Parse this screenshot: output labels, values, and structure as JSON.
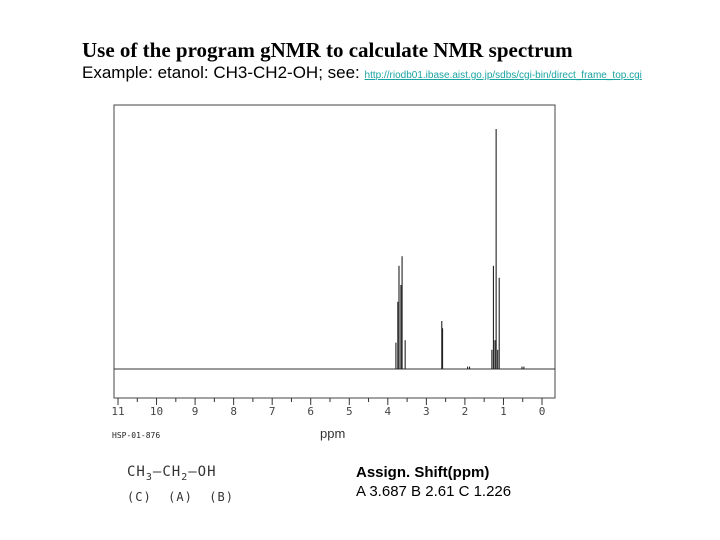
{
  "title": "Use of the program gNMR to calculate NMR spectrum",
  "subtitle": "Example: etanol: CH3-CH2-OH; see:",
  "link": "http://riodb01.ibase.aist.go.jp/sdbs/cgi-bin/direct_frame_top.cgi",
  "spectrum_code": "HSP-01-876",
  "formula": {
    "c": "CH",
    "c_sub": "3",
    "a": "CH",
    "a_sub": "2",
    "b": "OH",
    "labels": "(C)  (A)  (B)"
  },
  "assignment": {
    "header": "Assign. Shift(ppm)",
    "values": "A 3.687  B 2.61   C 1.226"
  },
  "chart_data": {
    "type": "line",
    "xlabel": "ppm",
    "xlim": [
      11,
      0
    ],
    "x_ticks": [
      "11",
      "10",
      "9",
      "8",
      "7",
      "6",
      "5",
      "4",
      "3",
      "2",
      "1",
      "0"
    ],
    "peaks": [
      {
        "ppm": 3.79,
        "intensity": 11
      },
      {
        "ppm": 3.74,
        "intensity": 28
      },
      {
        "ppm": 3.71,
        "intensity": 43
      },
      {
        "ppm": 3.66,
        "intensity": 35
      },
      {
        "ppm": 3.63,
        "intensity": 47
      },
      {
        "ppm": 3.55,
        "intensity": 12
      },
      {
        "ppm": 2.6,
        "intensity": 20
      },
      {
        "ppm": 2.58,
        "intensity": 17
      },
      {
        "ppm": 1.93,
        "intensity": 1
      },
      {
        "ppm": 1.88,
        "intensity": 1
      },
      {
        "ppm": 1.3,
        "intensity": 8
      },
      {
        "ppm": 1.26,
        "intensity": 43
      },
      {
        "ppm": 1.22,
        "intensity": 12
      },
      {
        "ppm": 1.19,
        "intensity": 100
      },
      {
        "ppm": 1.15,
        "intensity": 8
      },
      {
        "ppm": 1.11,
        "intensity": 38
      },
      {
        "ppm": 0.52,
        "intensity": 1
      },
      {
        "ppm": 0.47,
        "intensity": 1
      }
    ]
  }
}
